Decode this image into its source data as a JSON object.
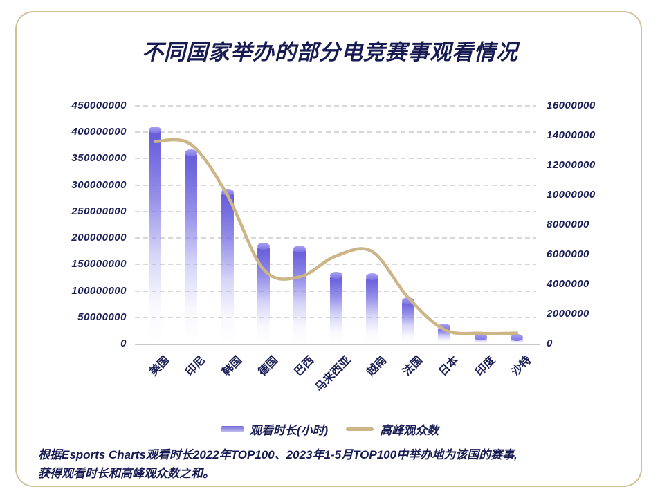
{
  "title": "不同国家举办的部分电竞赛事观看情况",
  "legend": {
    "bar_label": "观看时长(小时)",
    "line_label": "高峰观众数"
  },
  "footnote": {
    "line1": "根据Esports Charts观看时长2022年TOP100、2023年1-5月TOP100中举办地为该国的赛事,",
    "line2": "获得观看时长和高峰观众数之和。"
  },
  "colors": {
    "text_navy": "#1a1e55",
    "title_navy": "#171b52",
    "bar_purple_top": "#665bda",
    "bar_cap_light": "#a8a1f1",
    "line_tan": "#ccb586",
    "card_border_tan": "#d2c09a",
    "gridline_gray": "#d8d8d8"
  },
  "chart_data": {
    "type": "bar",
    "subtype": "bar+line combo, dual axis",
    "title": "不同国家举办的部分电竞赛事观看情况",
    "categories": [
      "美国",
      "印尼",
      "韩国",
      "德国",
      "巴西",
      "马来西亚",
      "越南",
      "法国",
      "日本",
      "印度",
      "沙特"
    ],
    "series": [
      {
        "name": "观看时长(小时)",
        "type": "bar",
        "axis": "left",
        "values": [
          405000000,
          363000000,
          288000000,
          186000000,
          181000000,
          131000000,
          128000000,
          82000000,
          33000000,
          15000000,
          13000000
        ]
      },
      {
        "name": "高峰观众数",
        "type": "line",
        "axis": "right",
        "values": [
          13600000,
          13400000,
          10000000,
          5000000,
          4500000,
          5900000,
          6200000,
          3100000,
          950000,
          700000,
          720000
        ]
      }
    ],
    "left_axis": {
      "min": 0,
      "max": 450000000,
      "step": 50000000,
      "ticks": [
        "450000000",
        "400000000",
        "350000000",
        "300000000",
        "250000000",
        "200000000",
        "150000000",
        "100000000",
        "50000000",
        "0"
      ]
    },
    "right_axis": {
      "min": 0,
      "max": 16000000,
      "step": 2000000,
      "ticks": [
        "16000000",
        "14000000",
        "12000000",
        "10000000",
        "8000000",
        "6000000",
        "4000000",
        "2000000",
        "0"
      ]
    },
    "grid": "dashed horizontal gridlines at left-axis steps",
    "legend_position": "bottom center"
  }
}
